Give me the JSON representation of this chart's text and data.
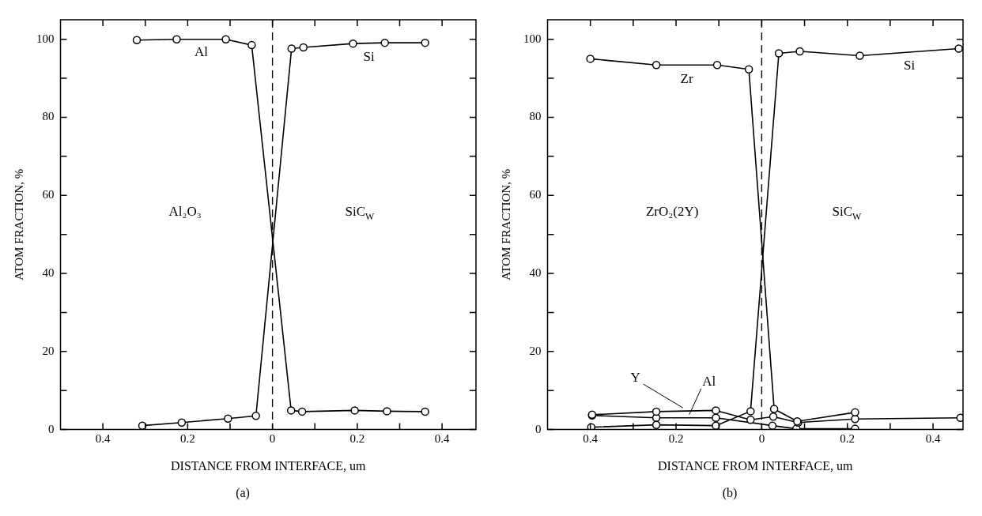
{
  "chart_data": [
    {
      "type": "line",
      "title": "(a)",
      "xlabel": "DISTANCE FROM INTERFACE, um",
      "ylabel": "ATOM FRACTION, %",
      "xlim": [
        -0.5,
        0.48
      ],
      "ylim": [
        0,
        105
      ],
      "xticks": [
        {
          "value": -0.4,
          "label": "0.4"
        },
        {
          "value": -0.3,
          "label": null
        },
        {
          "value": -0.2,
          "label": "0.2"
        },
        {
          "value": -0.1,
          "label": null
        },
        0,
        {
          "value": 0.1,
          "label": null
        },
        0.2,
        {
          "value": 0.3,
          "label": null
        },
        0.4
      ],
      "yticks": [
        0,
        {
          "value": 10,
          "label": null
        },
        20,
        {
          "value": 30,
          "label": null
        },
        40,
        {
          "value": 50,
          "label": null
        },
        60,
        {
          "value": 70,
          "label": null
        },
        80,
        {
          "value": 90,
          "label": null
        },
        100
      ],
      "grid": false,
      "legend": false,
      "marker": "circle",
      "line_style": "solid",
      "ref_lines": [
        {
          "axis": "x",
          "value": 0,
          "line_style": "dashed",
          "color": "#000000"
        }
      ],
      "annotations": [
        "Al₂O₃",
        "SiC$_{W}$"
      ],
      "series": [
        {
          "name": "Al",
          "color": "#000000",
          "x": [
            -0.32,
            -0.226,
            -0.11,
            -0.049,
            0.044,
            0.07,
            0.194,
            0.27,
            0.36
          ],
          "values": [
            99.8,
            100,
            100,
            98.5,
            4.9,
            4.6,
            4.9,
            4.7,
            4.6
          ]
        },
        {
          "name": "Si",
          "color": "#000000",
          "x": [
            -0.307,
            -0.214,
            -0.105,
            -0.039,
            0.045,
            0.073,
            0.19,
            0.265,
            0.36
          ],
          "values": [
            1.0,
            1.8,
            2.8,
            3.5,
            97.6,
            97.9,
            98.9,
            99.1,
            99.1
          ]
        }
      ]
    },
    {
      "type": "line",
      "title": "(b)",
      "xlabel": "DISTANCE FROM INTERFACE, um",
      "ylabel": "ATOM FRACTION, %",
      "xlim": [
        -0.5,
        0.47
      ],
      "ylim": [
        0,
        105
      ],
      "xticks": [
        {
          "value": -0.4,
          "label": "0.4"
        },
        {
          "value": -0.3,
          "label": null
        },
        {
          "value": -0.2,
          "label": "0.2"
        },
        {
          "value": -0.1,
          "label": null
        },
        0,
        {
          "value": 0.1,
          "label": null
        },
        0.2,
        {
          "value": 0.3,
          "label": null
        },
        0.4
      ],
      "yticks": [
        0,
        {
          "value": 10,
          "label": null
        },
        20,
        {
          "value": 30,
          "label": null
        },
        40,
        {
          "value": 50,
          "label": null
        },
        60,
        {
          "value": 70,
          "label": null
        },
        80,
        {
          "value": 90,
          "label": null
        },
        100
      ],
      "grid": false,
      "legend": false,
      "marker": "circle",
      "line_style": "solid",
      "ref_lines": [
        {
          "axis": "x",
          "value": 0,
          "line_style": "dashed",
          "color": "#000000"
        }
      ],
      "annotations": [
        "ZrO₂(2Y)",
        "SiC$_{W}$"
      ],
      "series": [
        {
          "name": "Zr",
          "color": "#000000",
          "x": [
            -0.4,
            -0.246,
            -0.104,
            -0.03,
            0.029,
            0.083,
            0.218
          ],
          "values": [
            95.0,
            93.4,
            93.4,
            92.3,
            5.3,
            2.1,
            4.4
          ]
        },
        {
          "name": "Si",
          "color": "#000000",
          "x": [
            -0.398,
            -0.246,
            -0.107,
            -0.026,
            0.04,
            0.089,
            0.229,
            0.46
          ],
          "values": [
            0.6,
            1.2,
            1.0,
            4.7,
            96.4,
            96.9,
            95.8,
            97.6
          ]
        },
        {
          "name": "Y",
          "color": "#000000",
          "x": [
            -0.396,
            -0.246,
            -0.107,
            -0.026,
            0.027,
            0.085,
            0.218,
            0.464
          ],
          "values": [
            3.8,
            4.6,
            4.9,
            2.5,
            3.3,
            1.8,
            2.7,
            3.0
          ]
        },
        {
          "name": "Al",
          "color": "#000000",
          "x": [
            -0.396,
            -0.246,
            -0.107,
            0.025,
            0.081,
            0.218
          ],
          "values": [
            3.6,
            3.0,
            3.0,
            1.0,
            0.2,
            0.2
          ]
        }
      ]
    }
  ]
}
